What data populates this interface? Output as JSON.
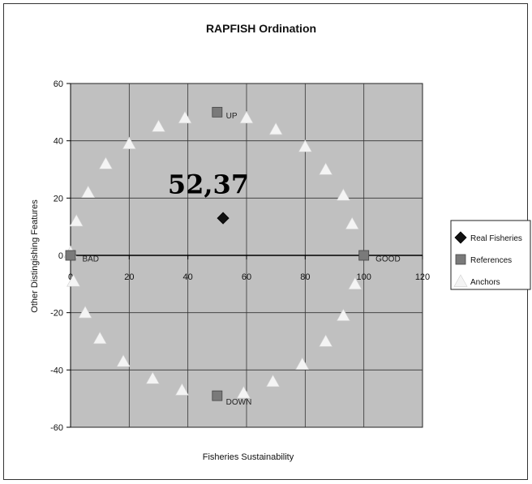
{
  "chart_data": {
    "type": "scatter",
    "title": "RAPFISH Ordination",
    "xlabel": "Fisheries Sustainability",
    "ylabel": "Other Distingishing Features",
    "xlim": [
      0,
      120
    ],
    "ylim": [
      -60,
      60
    ],
    "xticks": [
      "0",
      "20",
      "40",
      "60",
      "80",
      "100",
      "120"
    ],
    "yticks": [
      "60",
      "40",
      "20",
      "0",
      "-20",
      "-40",
      "-60"
    ],
    "grid": true,
    "legend_position": "right",
    "series": [
      {
        "name": "Real Fisheries",
        "marker": "diamond",
        "color": "#111111",
        "points": [
          [
            52,
            13
          ]
        ]
      },
      {
        "name": "References",
        "marker": "square",
        "color": "#7a7a7a",
        "points": [
          [
            50,
            50
          ],
          [
            100,
            0
          ],
          [
            50,
            -49
          ],
          [
            0,
            0
          ]
        ]
      },
      {
        "name": "Anchors",
        "marker": "triangle",
        "color": "#f4f4f4",
        "points": [
          [
            30,
            45
          ],
          [
            39,
            48
          ],
          [
            60,
            48
          ],
          [
            70,
            44
          ],
          [
            80,
            38
          ],
          [
            87,
            30
          ],
          [
            93,
            21
          ],
          [
            96,
            11
          ],
          [
            20,
            39
          ],
          [
            12,
            32
          ],
          [
            6,
            22
          ],
          [
            2,
            12
          ],
          [
            0,
            1
          ],
          [
            1,
            -9
          ],
          [
            5,
            -20
          ],
          [
            10,
            -29
          ],
          [
            18,
            -37
          ],
          [
            28,
            -43
          ],
          [
            38,
            -47
          ],
          [
            59,
            -48
          ],
          [
            69,
            -44
          ],
          [
            79,
            -38
          ],
          [
            87,
            -30
          ],
          [
            93,
            -21
          ],
          [
            97,
            -10
          ]
        ]
      }
    ],
    "annotations": [
      {
        "text": "52,37",
        "x": 47,
        "y": 25,
        "style": "large"
      },
      {
        "text": "UP",
        "x": 53,
        "y": 49,
        "style": "small"
      },
      {
        "text": "DOWN",
        "x": 53,
        "y": -51,
        "style": "small"
      },
      {
        "text": "BAD",
        "x": 4,
        "y": -1,
        "style": "small"
      },
      {
        "text": "GOOD",
        "x": 104,
        "y": -1,
        "style": "small"
      }
    ]
  }
}
